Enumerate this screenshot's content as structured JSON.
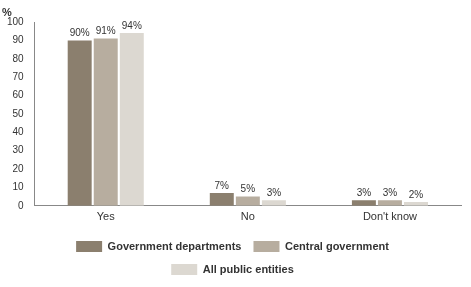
{
  "chart_data": {
    "type": "bar",
    "y_label": "%",
    "categories": [
      "Yes",
      "No",
      "Don't know"
    ],
    "series": [
      {
        "name": "Government departments",
        "color": "#8b7f6e",
        "values": [
          90,
          7,
          3
        ],
        "value_labels": [
          "90%",
          "7%",
          "3%"
        ]
      },
      {
        "name": "Central government",
        "color": "#b7ad9f",
        "values": [
          91,
          5,
          3
        ],
        "value_labels": [
          "91%",
          "5%",
          "3%"
        ]
      },
      {
        "name": "All public entities",
        "color": "#dcd8d1",
        "values": [
          94,
          3,
          2
        ],
        "value_labels": [
          "94%",
          "3%",
          "2%"
        ]
      }
    ],
    "ylim": [
      0,
      100
    ],
    "yticks": [
      0,
      10,
      20,
      30,
      40,
      50,
      60,
      70,
      80,
      90,
      100
    ],
    "grid": false,
    "legend": "bottom",
    "data_labels": true
  }
}
